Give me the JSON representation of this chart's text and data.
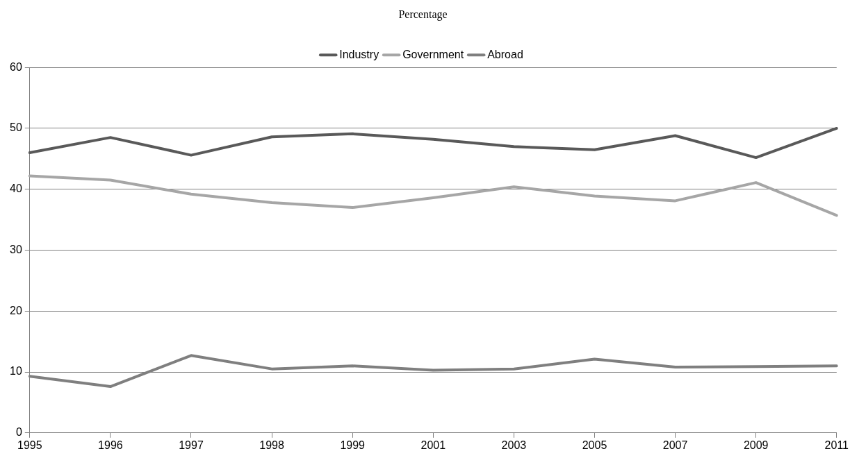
{
  "chart_data": {
    "type": "line",
    "title": "Percentage",
    "categories": [
      "1995",
      "1996",
      "1997",
      "1998",
      "1999",
      "2001",
      "2003",
      "2005",
      "2007",
      "2009",
      "2011"
    ],
    "series": [
      {
        "name": "Industry",
        "color": "#595959",
        "values": [
          46.0,
          48.5,
          45.6,
          48.6,
          49.1,
          48.2,
          47.0,
          46.5,
          48.8,
          45.2,
          50.0
        ]
      },
      {
        "name": "Government",
        "color": "#a6a6a6",
        "values": [
          42.2,
          41.5,
          39.2,
          37.8,
          37.0,
          38.6,
          40.4,
          38.9,
          38.1,
          41.1,
          35.7
        ]
      },
      {
        "name": "Abroad",
        "color": "#7f7f7f",
        "values": [
          9.3,
          7.6,
          12.7,
          10.5,
          11.0,
          10.3,
          10.5,
          12.1,
          10.8,
          10.9,
          11.0
        ]
      }
    ],
    "ylim": [
      0,
      60
    ],
    "yticks": [
      0,
      10,
      20,
      30,
      40,
      50,
      60
    ],
    "grid": "y",
    "legend": "top",
    "marker": "none",
    "line_style": "solid"
  }
}
